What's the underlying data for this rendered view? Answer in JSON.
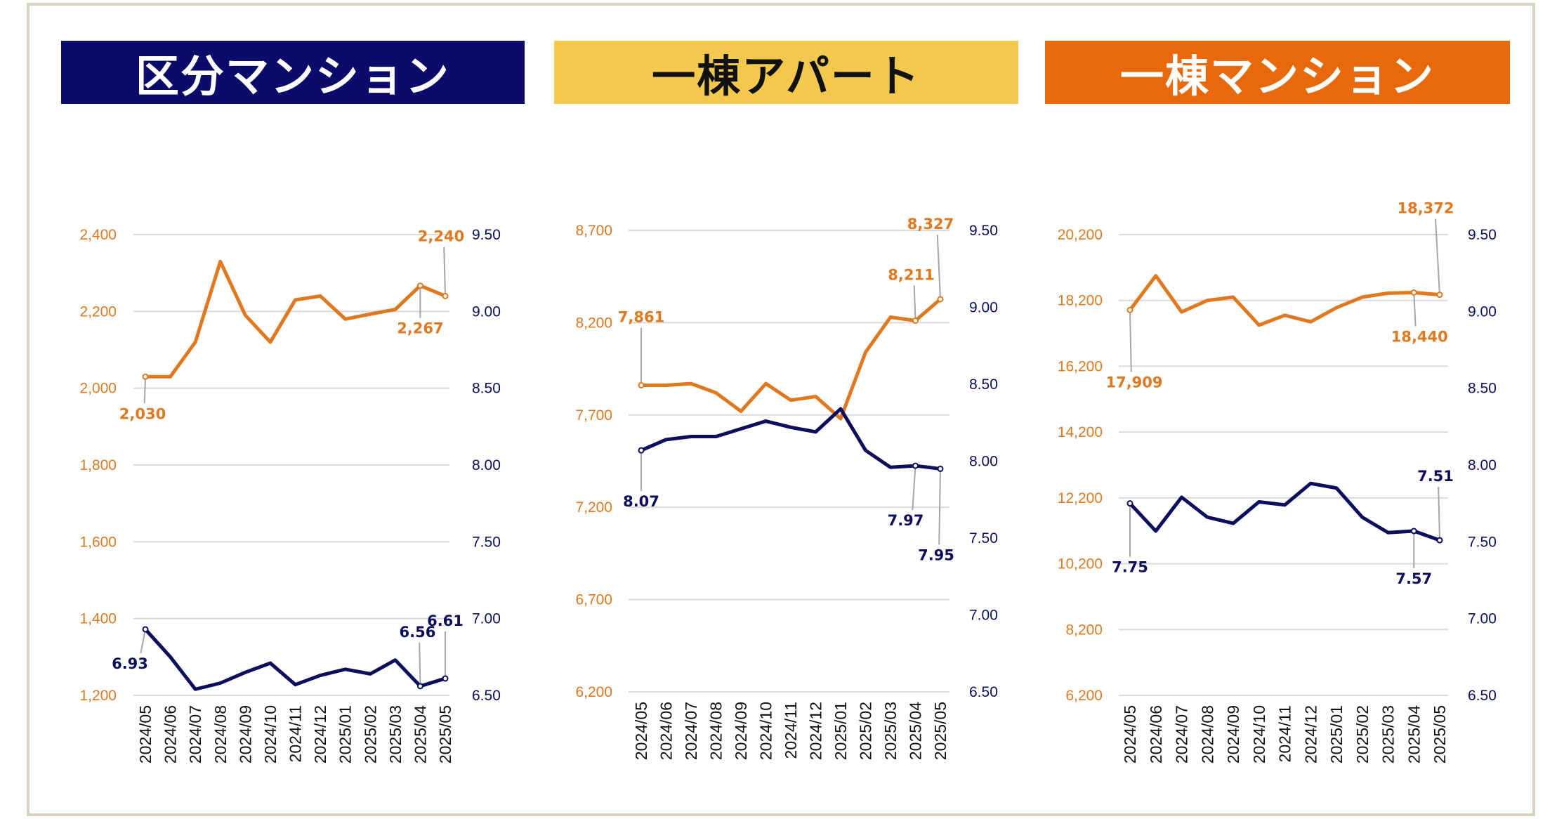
{
  "colors": {
    "orange": "#e07820",
    "navy": "#0d0d5e",
    "navy_label": "#2b2f6b",
    "grid": "#d9d9d9",
    "frame": "#d9d2bd"
  },
  "banners": [
    {
      "text": "区分マンション",
      "bg": "#0b0b6b",
      "color": "#ffffff"
    },
    {
      "text": "一棟アパート",
      "bg": "#f2c94c",
      "color": "#111111"
    },
    {
      "text": "一棟マンション",
      "bg": "#e8690c",
      "color": "#ffffff"
    }
  ],
  "chart_data": [
    {
      "type": "line",
      "categories": [
        "2024/05",
        "2024/06",
        "2024/07",
        "2024/08",
        "2024/09",
        "2024/10",
        "2024/11",
        "2024/12",
        "2025/01",
        "2025/02",
        "2025/03",
        "2025/04",
        "2025/05"
      ],
      "y_left": {
        "min": 1200,
        "max": 2400,
        "ticks": [
          "1,200",
          "1,400",
          "1,600",
          "1,800",
          "2,000",
          "2,200",
          "2,400"
        ],
        "color": "#e07820"
      },
      "y_right": {
        "min": 6.5,
        "max": 9.5,
        "ticks": [
          "6.50",
          "7.00",
          "7.50",
          "8.00",
          "8.50",
          "9.00",
          "9.50"
        ],
        "color": "#0d0d5e"
      },
      "series": [
        {
          "axis": "left",
          "color": "#e07820",
          "values": [
            2030,
            2030,
            2120,
            2330,
            2190,
            2120,
            2230,
            2240,
            2180,
            2193,
            2205,
            2267,
            2240
          ]
        },
        {
          "axis": "right",
          "color": "#0d0d5e",
          "values": [
            6.93,
            6.75,
            6.54,
            6.58,
            6.65,
            6.71,
            6.57,
            6.63,
            6.67,
            6.64,
            6.73,
            6.56,
            6.61
          ]
        }
      ],
      "labels": [
        {
          "text": "2,030",
          "series": 0,
          "index": 0
        },
        {
          "text": "2,267",
          "series": 0,
          "index": 11
        },
        {
          "text": "2,240",
          "series": 0,
          "index": 12
        },
        {
          "text": "6.93",
          "series": 1,
          "index": 0
        },
        {
          "text": "6.56",
          "series": 1,
          "index": 11
        },
        {
          "text": "6.61",
          "series": 1,
          "index": 12
        }
      ]
    },
    {
      "type": "line",
      "categories": [
        "2024/05",
        "2024/06",
        "2024/07",
        "2024/08",
        "2024/09",
        "2024/10",
        "2024/11",
        "2024/12",
        "2025/01",
        "2025/02",
        "2025/03",
        "2025/04",
        "2025/05"
      ],
      "y_left": {
        "min": 6200,
        "max": 8700,
        "ticks": [
          "6,200",
          "6,700",
          "7,200",
          "7,700",
          "8,200",
          "8,700"
        ],
        "color": "#e07820"
      },
      "y_right": {
        "min": 6.5,
        "max": 9.5,
        "ticks": [
          "6.50",
          "7.00",
          "7.50",
          "8.00",
          "8.50",
          "9.00",
          "9.50"
        ],
        "color": "#0d0d5e"
      },
      "series": [
        {
          "axis": "left",
          "color": "#e07820",
          "values": [
            7861,
            7861,
            7870,
            7820,
            7720,
            7870,
            7780,
            7800,
            7680,
            8040,
            8230,
            8211,
            8327
          ]
        },
        {
          "axis": "right",
          "color": "#0d0d5e",
          "values": [
            8.07,
            8.14,
            8.16,
            8.16,
            8.21,
            8.26,
            8.22,
            8.19,
            8.34,
            8.07,
            7.96,
            7.97,
            7.95
          ]
        }
      ],
      "labels": [
        {
          "text": "7,861",
          "series": 0,
          "index": 0
        },
        {
          "text": "8,211",
          "series": 0,
          "index": 11
        },
        {
          "text": "8,327",
          "series": 0,
          "index": 12
        },
        {
          "text": "8.07",
          "series": 1,
          "index": 0
        },
        {
          "text": "7.97",
          "series": 1,
          "index": 11
        },
        {
          "text": "7.95",
          "series": 1,
          "index": 12
        }
      ]
    },
    {
      "type": "line",
      "categories": [
        "2024/05",
        "2024/06",
        "2024/07",
        "2024/08",
        "2024/09",
        "2024/10",
        "2024/11",
        "2024/12",
        "2025/01",
        "2025/02",
        "2025/03",
        "2025/04",
        "2025/05"
      ],
      "y_left": {
        "min": 6200,
        "max": 20200,
        "ticks": [
          "6,200",
          "8,200",
          "10,200",
          "12,200",
          "14,200",
          "16,200",
          "18,200",
          "20,200"
        ],
        "color": "#e07820"
      },
      "y_right": {
        "min": 6.5,
        "max": 9.5,
        "ticks": [
          "6.50",
          "7.00",
          "7.50",
          "8.00",
          "8.50",
          "9.00",
          "9.50"
        ],
        "color": "#0d0d5e"
      },
      "series": [
        {
          "axis": "left",
          "color": "#e07820",
          "values": [
            17909,
            18950,
            17850,
            18200,
            18300,
            17450,
            17750,
            17550,
            17980,
            18300,
            18420,
            18440,
            18372
          ]
        },
        {
          "axis": "right",
          "color": "#0d0d5e",
          "values": [
            7.75,
            7.57,
            7.79,
            7.66,
            7.62,
            7.76,
            7.74,
            7.88,
            7.85,
            7.66,
            7.56,
            7.57,
            7.51
          ]
        }
      ],
      "labels": [
        {
          "text": "17,909",
          "series": 0,
          "index": 0
        },
        {
          "text": "18,440",
          "series": 0,
          "index": 11
        },
        {
          "text": "18,372",
          "series": 0,
          "index": 12
        },
        {
          "text": "7.75",
          "series": 1,
          "index": 0
        },
        {
          "text": "7.57",
          "series": 1,
          "index": 11
        },
        {
          "text": "7.51",
          "series": 1,
          "index": 12
        }
      ]
    }
  ]
}
